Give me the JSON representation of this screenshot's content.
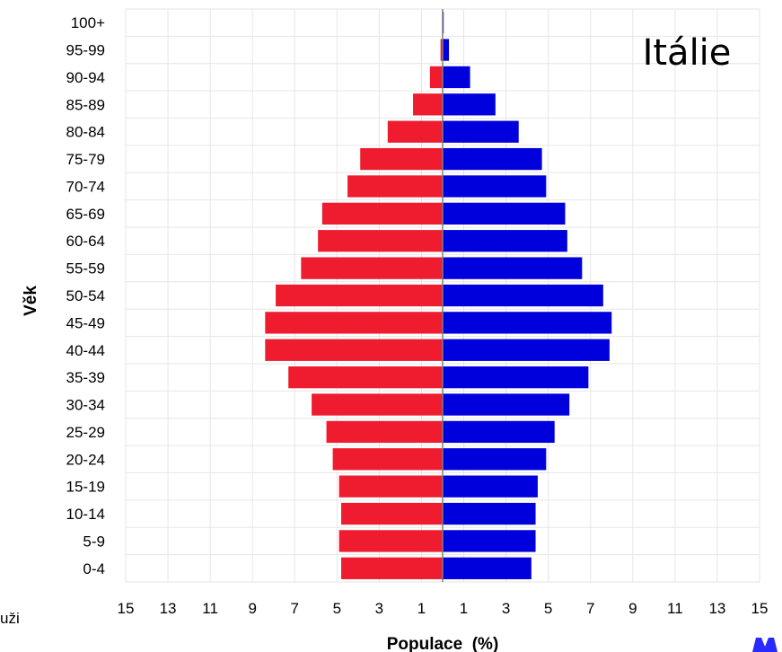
{
  "chart_data": {
    "type": "bar",
    "orientation": "horizontal",
    "title": "Itálie",
    "ylabel": "Věk",
    "xlabel": "Populace  (%)",
    "left_label_fragment": "uži",
    "categories": [
      "0-4",
      "5-9",
      "10-14",
      "15-19",
      "20-24",
      "25-29",
      "30-34",
      "35-39",
      "40-44",
      "45-49",
      "50-54",
      "55-59",
      "60-64",
      "65-69",
      "70-74",
      "75-79",
      "80-84",
      "85-89",
      "90-94",
      "95-99",
      "100+"
    ],
    "xlim": [
      -15,
      15
    ],
    "x_tick_values": [
      -15,
      -13,
      -11,
      -9,
      -7,
      -5,
      -3,
      -1,
      1,
      3,
      5,
      7,
      9,
      11,
      13,
      15
    ],
    "x_tick_labels": [
      "15",
      "13",
      "11",
      "9",
      "7",
      "5",
      "3",
      "1",
      "1",
      "3",
      "5",
      "7",
      "9",
      "11",
      "13",
      "15"
    ],
    "grid": true,
    "series": [
      {
        "name": "",
        "side": "left",
        "color": "#ee1c2e",
        "values": [
          4.8,
          4.9,
          4.8,
          4.9,
          5.2,
          5.5,
          6.2,
          7.3,
          8.4,
          8.4,
          7.9,
          6.7,
          5.9,
          5.7,
          4.5,
          3.9,
          2.6,
          1.4,
          0.6,
          0.1,
          0.0
        ]
      },
      {
        "name": "",
        "side": "right",
        "color": "#0000dd",
        "values": [
          4.2,
          4.4,
          4.4,
          4.5,
          4.9,
          5.3,
          6.0,
          6.9,
          7.9,
          8.0,
          7.6,
          6.6,
          5.9,
          5.8,
          4.9,
          4.7,
          3.6,
          2.5,
          1.3,
          0.3,
          0.05
        ]
      }
    ]
  }
}
